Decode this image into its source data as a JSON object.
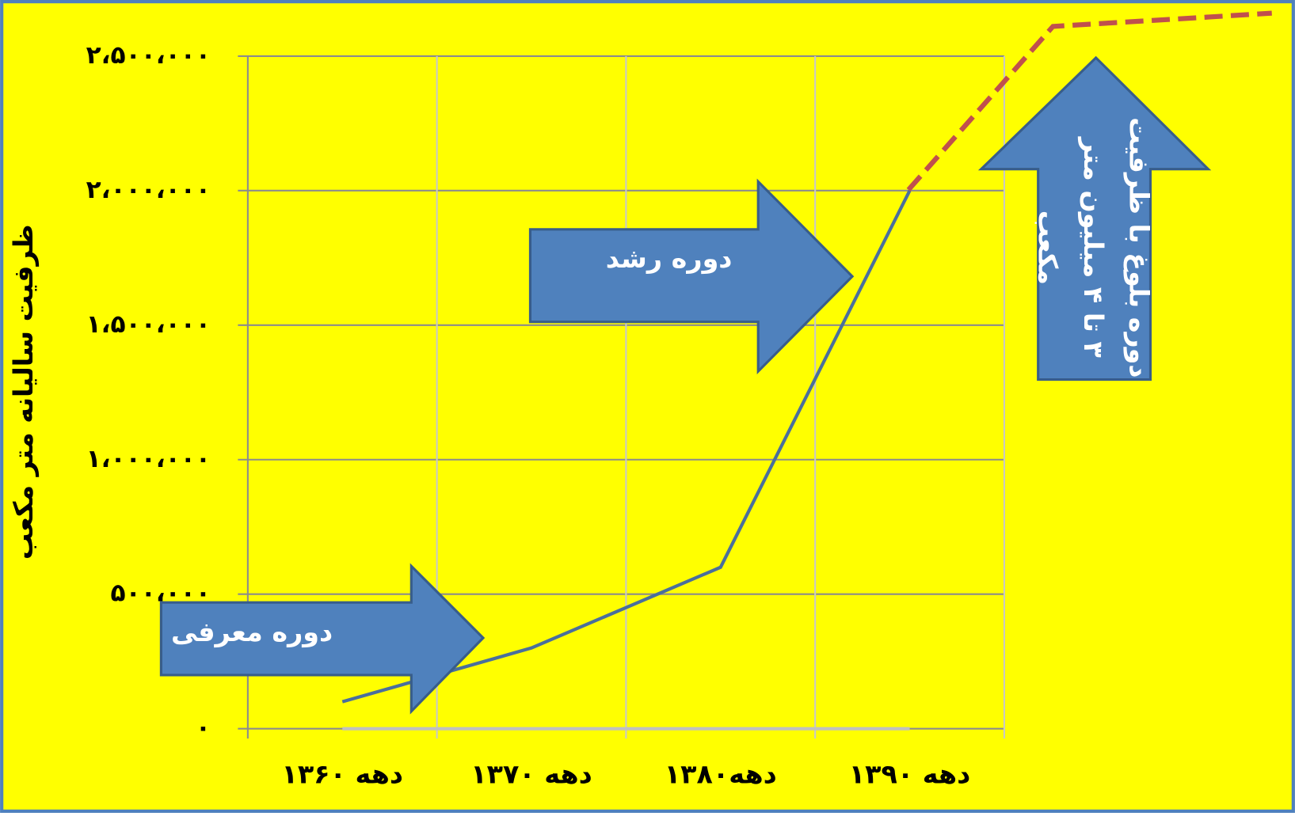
{
  "chart_data": {
    "type": "line",
    "y_label": "ظرفیت سالیانه متر مکعب",
    "categories": [
      "دهه ۱۳۶۰",
      "دهه ۱۳۷۰",
      "دهه۱۳۸۰",
      "دهه ۱۳۹۰"
    ],
    "series": [
      {
        "color": "#4a6f9c",
        "values": [
          100000,
          300000,
          600000,
          2000000
        ]
      },
      {
        "color": "#c0c0c0",
        "values": [
          0,
          0,
          0,
          0
        ]
      }
    ],
    "ylim": [
      0,
      2500000
    ],
    "yticks": [
      {
        "value": 0,
        "label": "۰"
      },
      {
        "value": 500000,
        "label": "۵۰۰،۰۰۰"
      },
      {
        "value": 1000000,
        "label": "۱،۰۰۰،۰۰۰"
      },
      {
        "value": 1500000,
        "label": "۱،۵۰۰،۰۰۰"
      },
      {
        "value": 2000000,
        "label": "۲،۰۰۰،۰۰۰"
      },
      {
        "value": 2500000,
        "label": "۲،۵۰۰،۰۰۰"
      }
    ],
    "grid": true,
    "annotations": [
      "دوره معرفی",
      "دوره رشد",
      "دوره بلوغ با ظرفیت",
      "۳ تا ۴ میلیون متر",
      "مکعب"
    ]
  }
}
